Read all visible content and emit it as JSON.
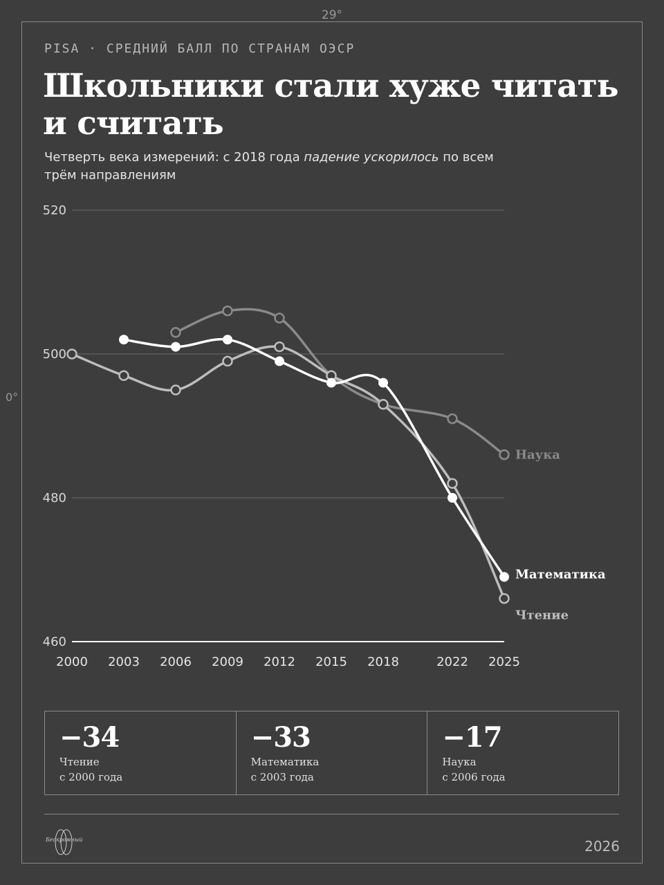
{
  "marks": {
    "top": "29°",
    "left": "0°"
  },
  "header": {
    "kicker": "PISA · СРЕДНИЙ БАЛЛ ПО СТРАНАМ ОЭСР",
    "title": "Школьники стали хуже читать и считать",
    "subtitle_pre": "Четверть века измерений: с 2018 года ",
    "subtitle_em": "падение ускорилось",
    "subtitle_post": " по всем трём направлениям"
  },
  "chart_data": {
    "type": "line",
    "title": "Школьники стали хуже читать и считать",
    "subtitle": "Четверть века измерений: с 2018 года падение ускорилось по всем трём направлениям",
    "x_ticks": [
      2000,
      2003,
      2006,
      2009,
      2012,
      2015,
      2018,
      2022,
      2025
    ],
    "y_ticks": [
      520,
      500,
      480,
      460
    ],
    "ylim": [
      460,
      520
    ],
    "xlim": [
      2000,
      2025
    ],
    "grid": true,
    "series": [
      {
        "name": "Наука",
        "color": "#8a8a8a",
        "marker": "hollow",
        "x": [
          2006,
          2009,
          2012,
          2015,
          2018,
          2022,
          2025
        ],
        "values": [
          503,
          506,
          505,
          497,
          493,
          491,
          486
        ]
      },
      {
        "name": "Чтение",
        "color": "#bdbdbd",
        "marker": "hollow",
        "x": [
          2000,
          2003,
          2006,
          2009,
          2012,
          2015,
          2018,
          2022,
          2025
        ],
        "values": [
          500,
          497,
          495,
          499,
          501,
          497,
          493,
          482,
          466
        ]
      },
      {
        "name": "Математика",
        "color": "#ffffff",
        "marker": "filled",
        "x": [
          2003,
          2006,
          2009,
          2012,
          2015,
          2018,
          2022,
          2025
        ],
        "values": [
          502,
          501,
          502,
          499,
          496,
          496,
          480,
          469
        ]
      }
    ]
  },
  "stats": [
    {
      "value": "−34",
      "line1": "Чтение",
      "line2": "с 2000 года"
    },
    {
      "value": "−33",
      "line1": "Математика",
      "line2": "с 2003 года"
    },
    {
      "value": "−17",
      "line1": "Наука",
      "line2": "с 2006 года"
    }
  ],
  "footer": {
    "logo_text": "Бескромный",
    "year": "2026"
  }
}
